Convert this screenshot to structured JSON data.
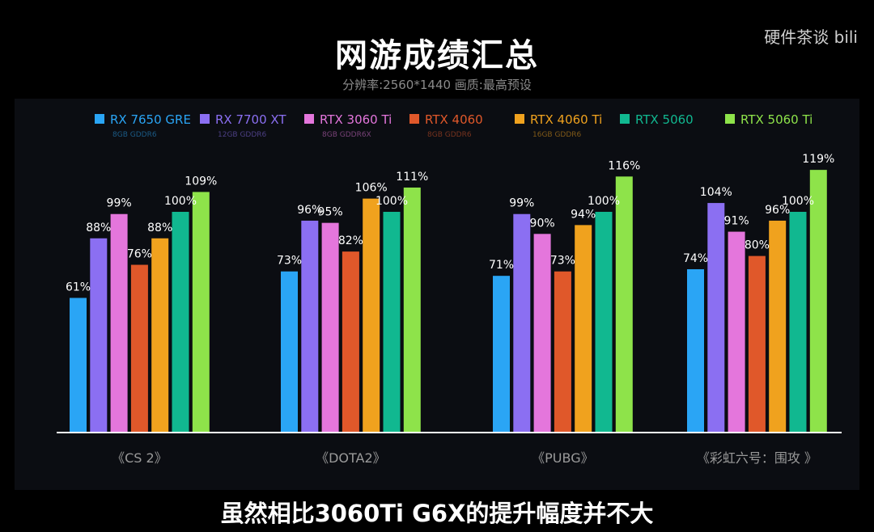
{
  "header": {
    "title": "网游成绩汇总",
    "subtitle": "分辨率:2560*1440 画质:最高预设",
    "watermark": "硬件茶谈 bili"
  },
  "caption": "虽然相比3060Ti G6X的提升幅度并不大",
  "colors": {
    "background": "#000000",
    "plot_panel": "#0b0d12",
    "axis": "#ffffff",
    "label": "#ffffff",
    "category_label": "#9a9a9a"
  },
  "chart_data": {
    "type": "bar",
    "title": "网游成绩汇总",
    "subtitle": "分辨率:2560*1440 画质:最高预设",
    "categories": [
      "《CS 2》",
      "《DOTA2》",
      "《PUBG》",
      "《彩虹六号：围攻 》"
    ],
    "ylim": [
      0,
      130
    ],
    "grid": false,
    "legend_position": "top",
    "value_suffix": "%",
    "series": [
      {
        "name": "RX 7650 GRE",
        "spec": "8GB GDDR6",
        "color": "#2aa5f5",
        "values": [
          61,
          73,
          71,
          74
        ]
      },
      {
        "name": "RX 7700 XT",
        "spec": "12GB GDDR6",
        "color": "#8b6ff2",
        "values": [
          88,
          96,
          99,
          104
        ]
      },
      {
        "name": "RTX 3060 Ti",
        "spec": "8GB GDDR6X",
        "color": "#e476dc",
        "values": [
          99,
          95,
          90,
          91
        ]
      },
      {
        "name": "RTX 4060",
        "spec": "8GB GDDR6",
        "color": "#e0582a",
        "values": [
          76,
          82,
          73,
          80
        ]
      },
      {
        "name": "RTX 4060 Ti",
        "spec": "16GB GDDR6",
        "color": "#f0a21e",
        "values": [
          88,
          106,
          94,
          96
        ]
      },
      {
        "name": "RTX 5060",
        "spec": "",
        "color": "#11b890",
        "values": [
          100,
          100,
          100,
          100
        ]
      },
      {
        "name": "RTX 5060 Ti",
        "spec": "",
        "color": "#8ee34a",
        "values": [
          109,
          111,
          116,
          119
        ]
      }
    ]
  }
}
